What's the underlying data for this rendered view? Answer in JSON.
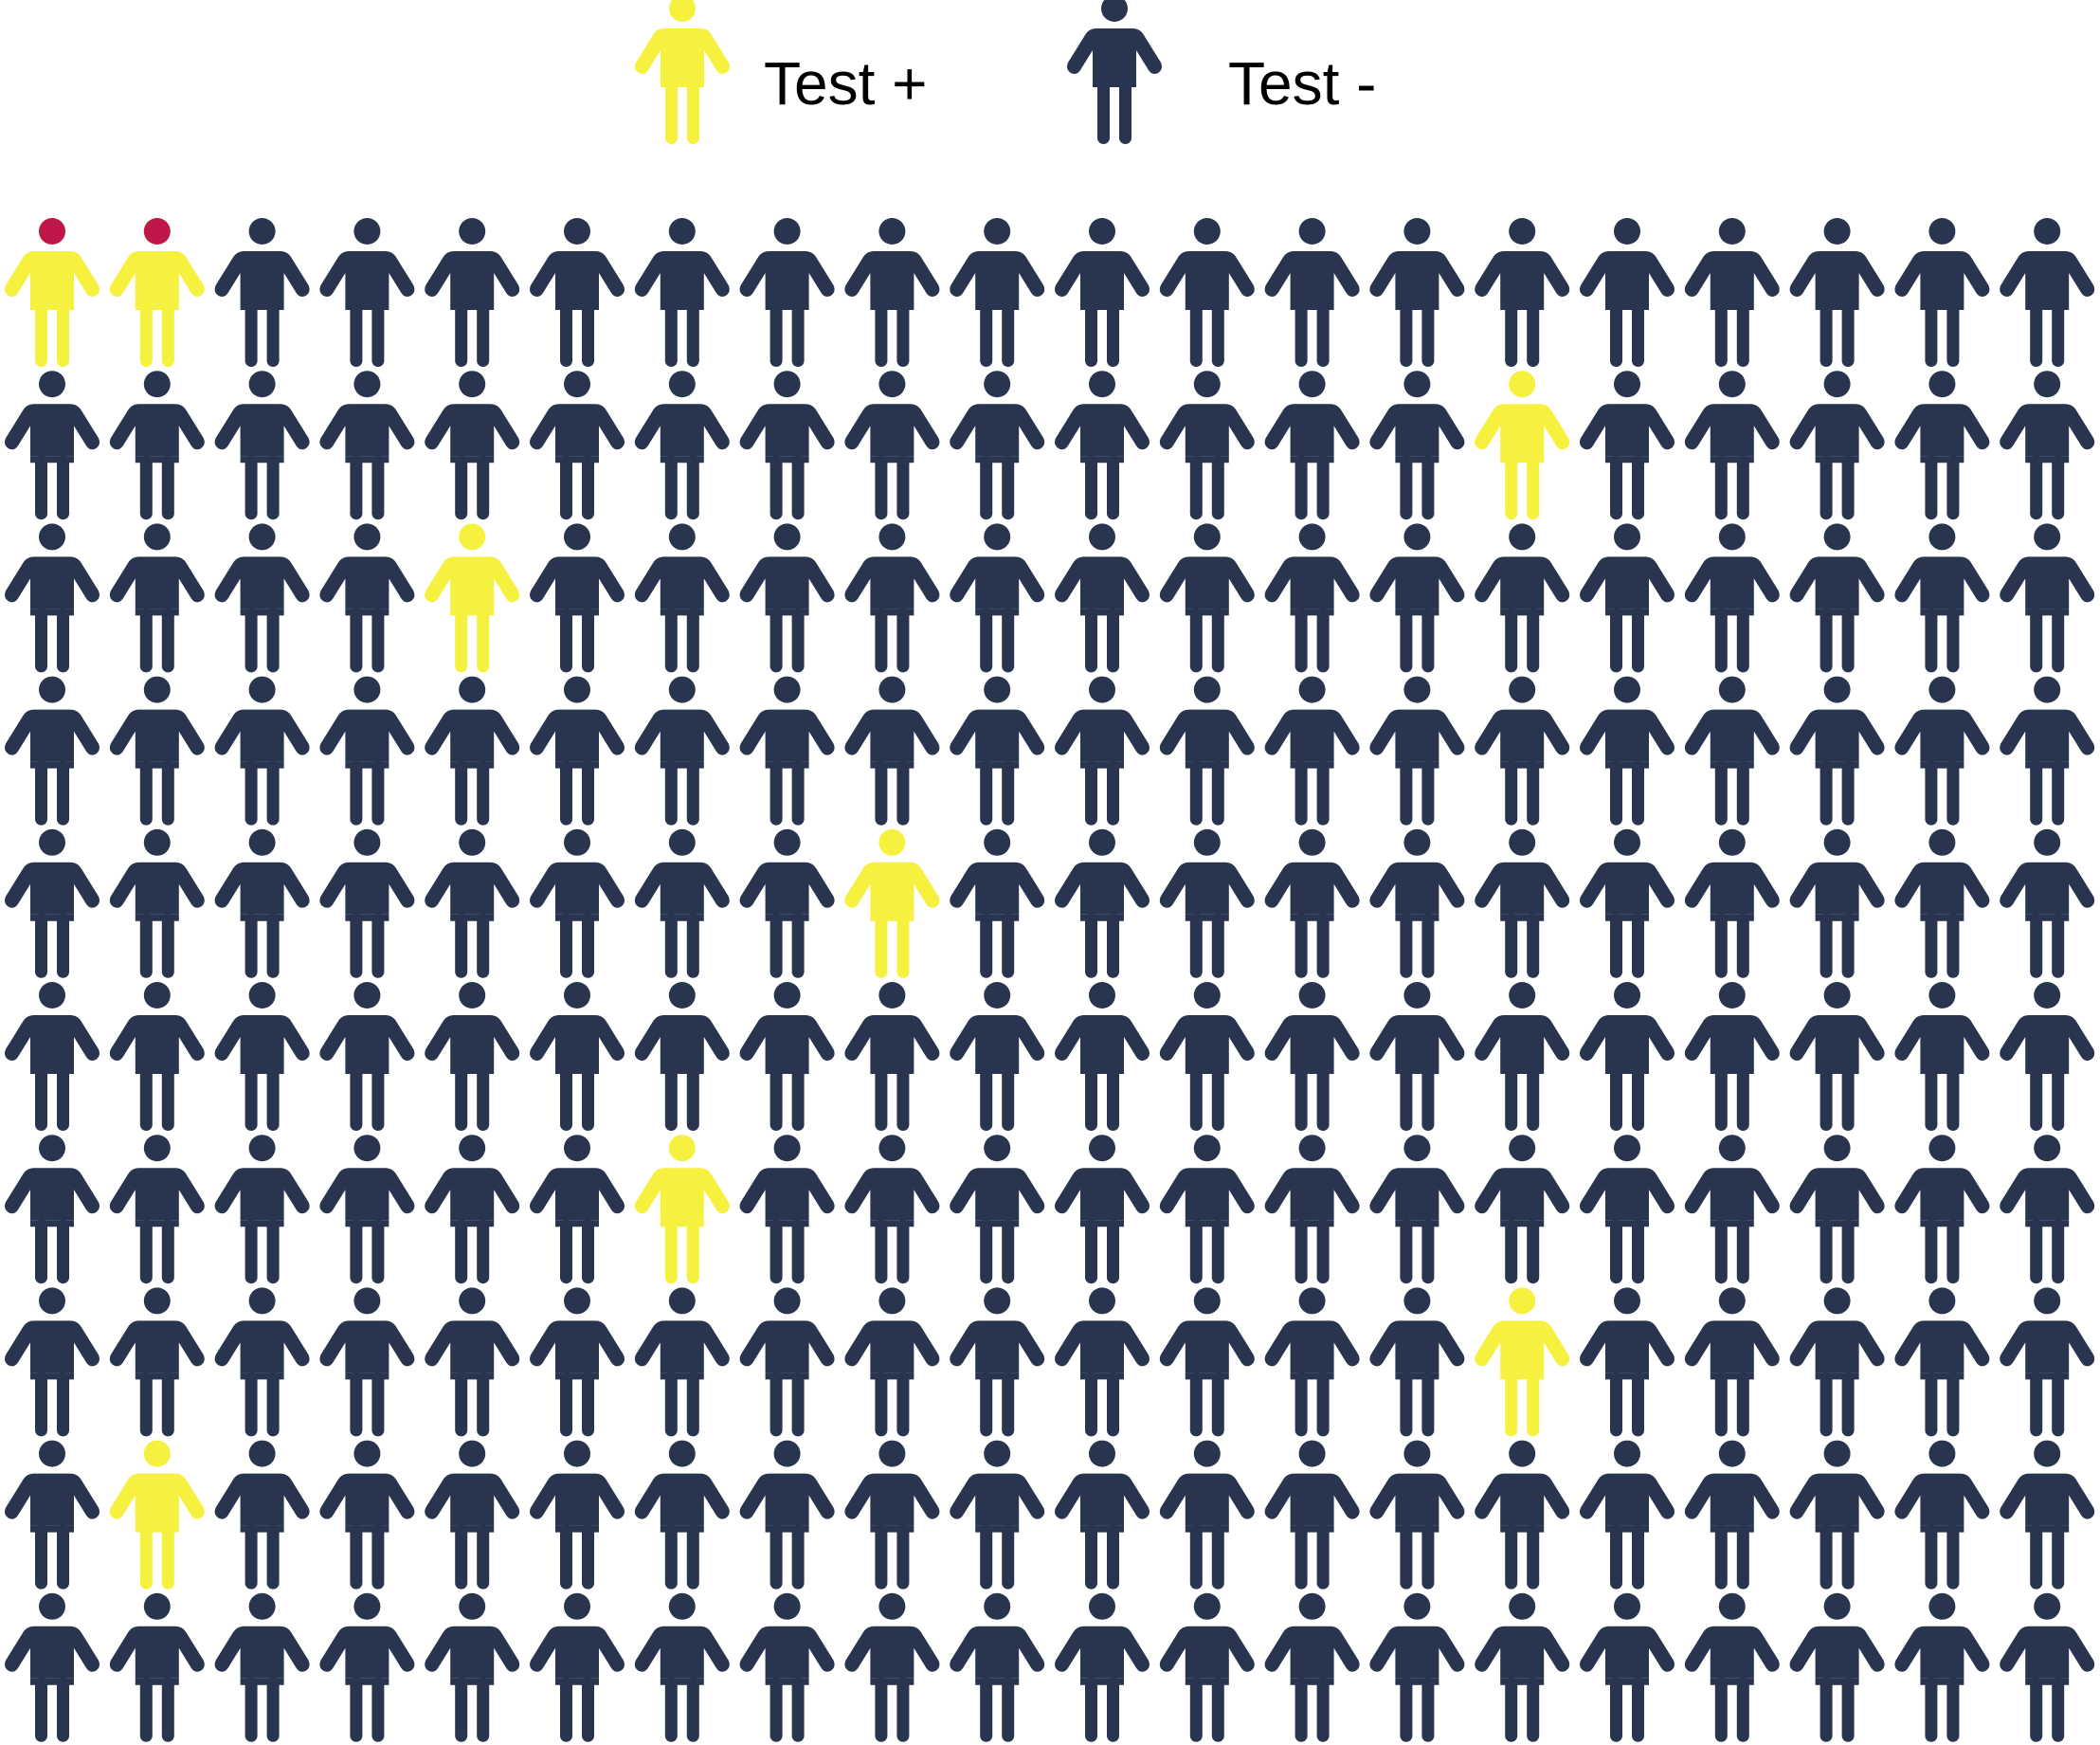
{
  "legend": [
    {
      "label": "Test +",
      "status": "positive"
    },
    {
      "label": "Test -",
      "status": "negative"
    }
  ],
  "colors": {
    "positive": "#f6f03f",
    "negative": "#29344e",
    "highlight_head": "#c0174a",
    "background": "#ffffff"
  },
  "grid": {
    "rows": 10,
    "cols": 20,
    "positives": [
      {
        "row": 0,
        "col": 0,
        "red_head": true
      },
      {
        "row": 0,
        "col": 1,
        "red_head": true
      },
      {
        "row": 1,
        "col": 14,
        "red_head": false
      },
      {
        "row": 2,
        "col": 4,
        "red_head": false
      },
      {
        "row": 4,
        "col": 8,
        "red_head": false
      },
      {
        "row": 6,
        "col": 6,
        "red_head": false
      },
      {
        "row": 7,
        "col": 14,
        "red_head": false
      },
      {
        "row": 8,
        "col": 1,
        "red_head": false
      }
    ]
  },
  "icons": {
    "person": "person-icon"
  }
}
